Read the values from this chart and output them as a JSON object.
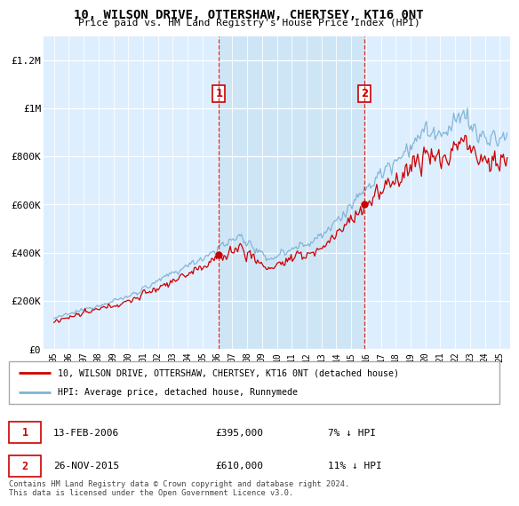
{
  "title": "10, WILSON DRIVE, OTTERSHAW, CHERTSEY, KT16 0NT",
  "subtitle": "Price paid vs. HM Land Registry's House Price Index (HPI)",
  "hpi_label": "HPI: Average price, detached house, Runnymede",
  "property_label": "10, WILSON DRIVE, OTTERSHAW, CHERTSEY, KT16 0NT (detached house)",
  "property_color": "#cc0000",
  "hpi_color": "#7fb3d3",
  "bg_highlight_color": "#ccdff0",
  "plot_bg_color": "#ddeeff",
  "transaction1": {
    "date": "13-FEB-2006",
    "price": 395000,
    "year": 2006.1,
    "hpi_diff": "7% ↓ HPI"
  },
  "transaction2": {
    "date": "26-NOV-2015",
    "price": 610000,
    "year": 2015.9,
    "hpi_diff": "11% ↓ HPI"
  },
  "footer": "Contains HM Land Registry data © Crown copyright and database right 2024.\nThis data is licensed under the Open Government Licence v3.0.",
  "ylim": [
    0,
    1300000
  ],
  "yticks": [
    0,
    200000,
    400000,
    600000,
    800000,
    1000000,
    1200000
  ],
  "ytick_labels": [
    "£0",
    "£200K",
    "£400K",
    "£600K",
    "£800K",
    "£1M",
    "£1.2M"
  ],
  "xlim_left": 1994.3,
  "xlim_right": 2025.7
}
